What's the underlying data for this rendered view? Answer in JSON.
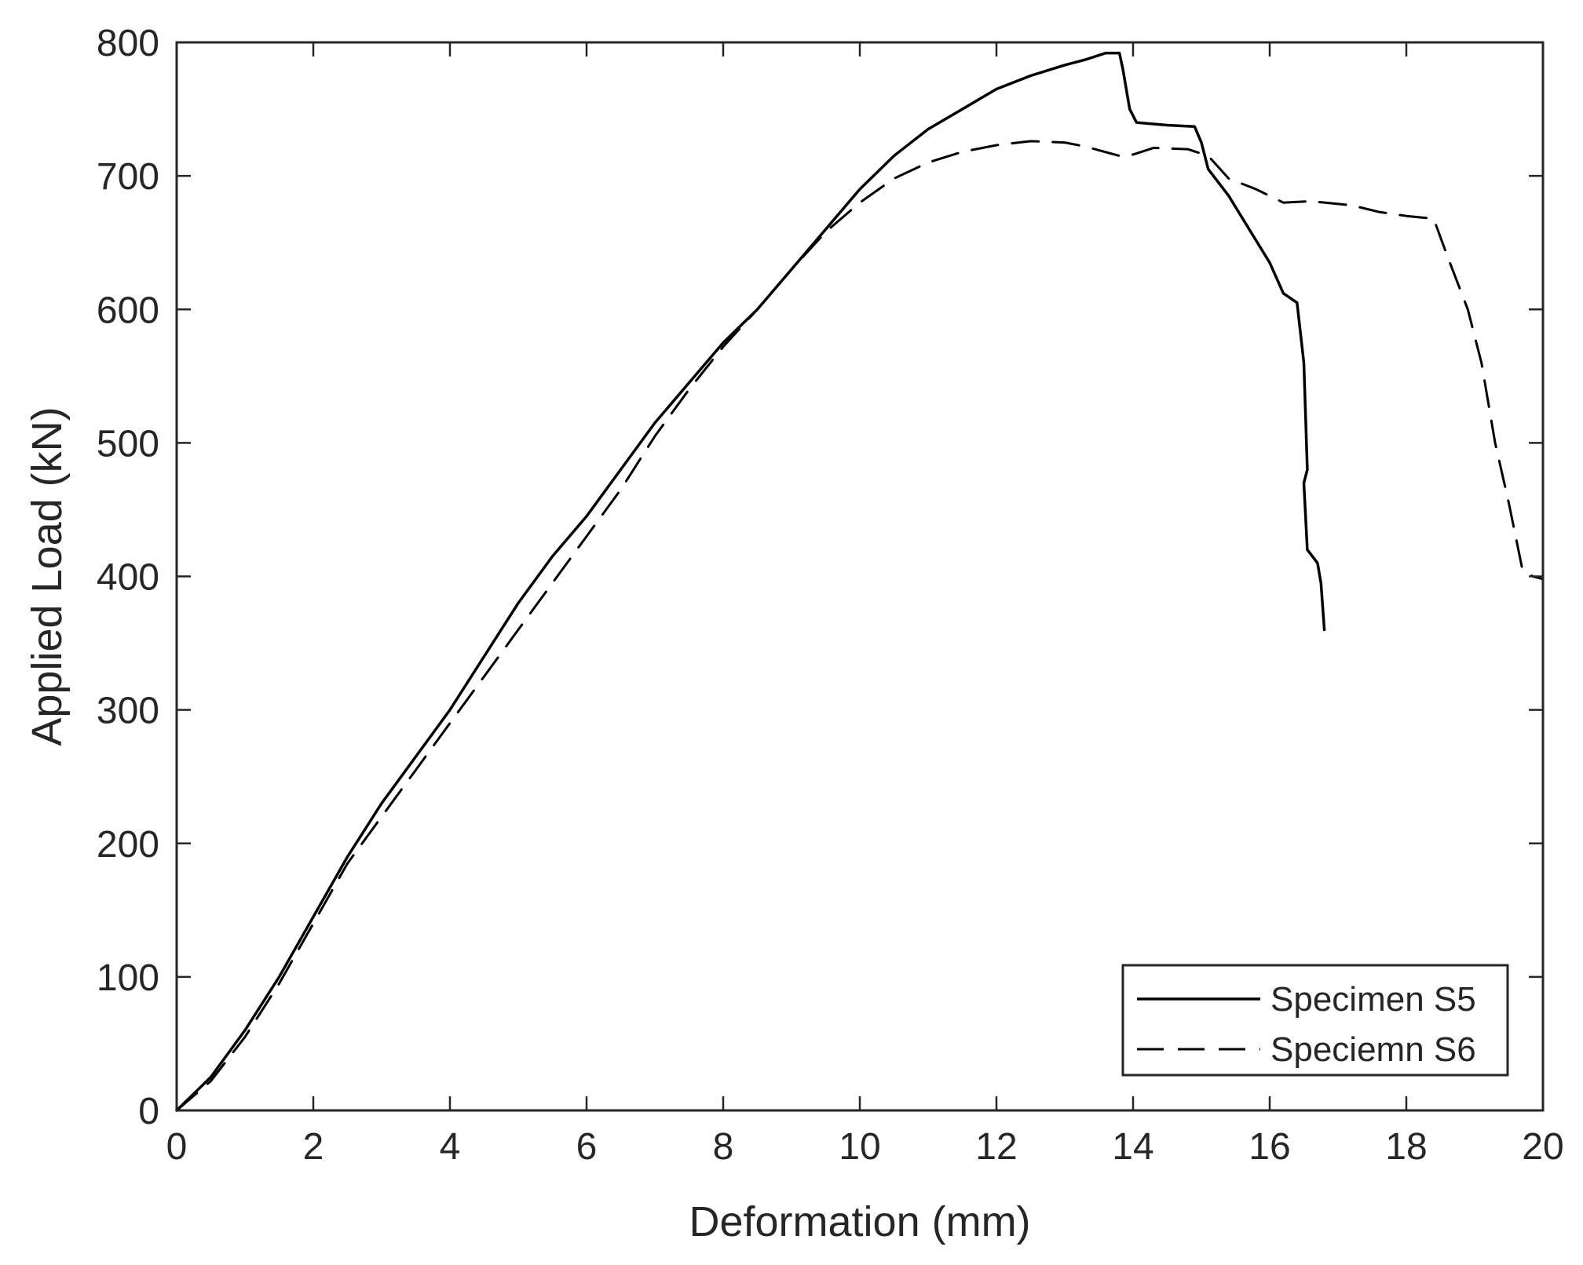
{
  "chart_data": {
    "type": "line",
    "xlabel": "Deformation (mm)",
    "ylabel": "Applied Load (kN)",
    "xlim": [
      0,
      20
    ],
    "ylim": [
      0,
      800
    ],
    "xticks": [
      0,
      2,
      4,
      6,
      8,
      10,
      12,
      14,
      16,
      18,
      20
    ],
    "yticks": [
      0,
      100,
      200,
      300,
      400,
      500,
      600,
      700,
      800
    ],
    "grid": false,
    "legend": "bottom-right",
    "series": [
      {
        "name": "Specimen S5",
        "style": "solid",
        "color": "#000000",
        "points": [
          [
            0,
            0
          ],
          [
            0.5,
            25
          ],
          [
            1,
            60
          ],
          [
            1.5,
            100
          ],
          [
            2,
            145
          ],
          [
            2.5,
            190
          ],
          [
            3,
            230
          ],
          [
            3.5,
            265
          ],
          [
            4,
            300
          ],
          [
            4.5,
            340
          ],
          [
            5,
            380
          ],
          [
            5.5,
            415
          ],
          [
            6,
            445
          ],
          [
            6.5,
            480
          ],
          [
            7,
            515
          ],
          [
            7.5,
            545
          ],
          [
            8,
            575
          ],
          [
            8.5,
            600
          ],
          [
            9,
            630
          ],
          [
            9.5,
            660
          ],
          [
            10,
            690
          ],
          [
            10.5,
            715
          ],
          [
            11,
            735
          ],
          [
            11.5,
            750
          ],
          [
            12,
            765
          ],
          [
            12.5,
            775
          ],
          [
            13,
            783
          ],
          [
            13.3,
            787
          ],
          [
            13.6,
            792
          ],
          [
            13.8,
            792
          ],
          [
            13.85,
            780
          ],
          [
            13.95,
            750
          ],
          [
            14.05,
            740
          ],
          [
            14.5,
            738
          ],
          [
            14.9,
            737
          ],
          [
            15.0,
            725
          ],
          [
            15.1,
            705
          ],
          [
            15.4,
            685
          ],
          [
            15.7,
            660
          ],
          [
            16.0,
            635
          ],
          [
            16.2,
            612
          ],
          [
            16.4,
            605
          ],
          [
            16.5,
            560
          ],
          [
            16.55,
            480
          ],
          [
            16.5,
            470
          ],
          [
            16.55,
            420
          ],
          [
            16.7,
            410
          ],
          [
            16.75,
            395
          ],
          [
            16.8,
            360
          ]
        ]
      },
      {
        "name": "Speciemn S6",
        "style": "dashed",
        "color": "#000000",
        "points": [
          [
            0,
            0
          ],
          [
            0.5,
            22
          ],
          [
            1,
            55
          ],
          [
            1.5,
            95
          ],
          [
            2,
            140
          ],
          [
            2.5,
            185
          ],
          [
            3,
            220
          ],
          [
            3.5,
            255
          ],
          [
            4,
            290
          ],
          [
            4.5,
            325
          ],
          [
            5,
            360
          ],
          [
            5.5,
            395
          ],
          [
            6,
            430
          ],
          [
            6.5,
            465
          ],
          [
            7,
            505
          ],
          [
            7.5,
            540
          ],
          [
            8,
            572
          ],
          [
            8.5,
            600
          ],
          [
            9,
            630
          ],
          [
            9.5,
            658
          ],
          [
            10,
            680
          ],
          [
            10.5,
            698
          ],
          [
            11,
            710
          ],
          [
            11.5,
            718
          ],
          [
            12,
            723
          ],
          [
            12.5,
            726
          ],
          [
            13,
            725
          ],
          [
            13.3,
            722
          ],
          [
            13.8,
            715
          ],
          [
            14.0,
            716
          ],
          [
            14.3,
            721
          ],
          [
            14.8,
            720
          ],
          [
            15.1,
            715
          ],
          [
            15.4,
            698
          ],
          [
            15.8,
            690
          ],
          [
            16.2,
            680
          ],
          [
            16.6,
            681
          ],
          [
            17.2,
            678
          ],
          [
            17.6,
            673
          ],
          [
            18.0,
            670
          ],
          [
            18.4,
            668
          ],
          [
            18.6,
            640
          ],
          [
            18.9,
            600
          ],
          [
            19.1,
            560
          ],
          [
            19.3,
            500
          ],
          [
            19.5,
            455
          ],
          [
            19.7,
            405
          ],
          [
            19.85,
            400
          ],
          [
            20,
            398
          ]
        ]
      }
    ]
  }
}
